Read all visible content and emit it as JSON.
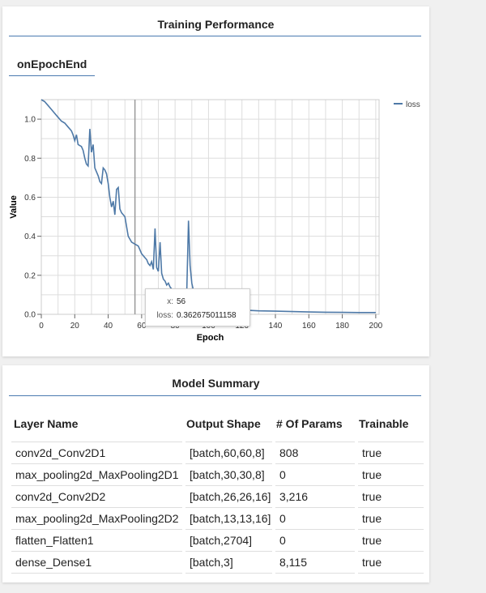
{
  "training": {
    "title": "Training Performance",
    "tab": "onEpochEnd",
    "tooltip": {
      "x_key": "x:",
      "x_val": "56",
      "loss_key": "loss:",
      "loss_val": "0.362675011158"
    }
  },
  "colors": {
    "series": "#4e79a7",
    "accent_rule": "#4a7ab0",
    "grid": "#dddddd"
  },
  "chart_data": {
    "type": "line",
    "xlabel": "Epoch",
    "ylabel": "Value",
    "xlim": [
      0,
      202
    ],
    "ylim": [
      0,
      1.1
    ],
    "xticks": [
      0,
      20,
      40,
      60,
      80,
      100,
      120,
      140,
      160,
      180,
      200
    ],
    "yticks": [
      0.0,
      0.2,
      0.4,
      0.6,
      0.8,
      1.0
    ],
    "ytick_labels": [
      "0.0",
      "0.2",
      "0.4",
      "0.6",
      "0.8",
      "1.0"
    ],
    "grid": true,
    "legend": "top-right",
    "hover_x": 56,
    "series": [
      {
        "name": "loss",
        "x": [
          0,
          2,
          4,
          6,
          8,
          10,
          12,
          14,
          16,
          18,
          19,
          20,
          21,
          22,
          24,
          25,
          26,
          27,
          28,
          29,
          30,
          31,
          32,
          33,
          34,
          35,
          36,
          37,
          38,
          39,
          40,
          41,
          42,
          43,
          44,
          45,
          46,
          47,
          48,
          49,
          50,
          52,
          54,
          56,
          58,
          60,
          62,
          63,
          64,
          65,
          66,
          67,
          68,
          69,
          70,
          71,
          72,
          73,
          74,
          75,
          76,
          77,
          78,
          80,
          82,
          85,
          87,
          88,
          89,
          90,
          91,
          92,
          93,
          94,
          95,
          96,
          98,
          100,
          105,
          110,
          115,
          120,
          125,
          130,
          140,
          150,
          160,
          170,
          180,
          190,
          200
        ],
        "values": [
          1.1,
          1.09,
          1.07,
          1.05,
          1.03,
          1.01,
          0.99,
          0.98,
          0.96,
          0.94,
          0.92,
          0.89,
          0.92,
          0.87,
          0.86,
          0.84,
          0.8,
          0.77,
          0.76,
          0.95,
          0.83,
          0.87,
          0.75,
          0.73,
          0.71,
          0.68,
          0.67,
          0.75,
          0.74,
          0.72,
          0.67,
          0.6,
          0.55,
          0.58,
          0.51,
          0.64,
          0.65,
          0.54,
          0.52,
          0.51,
          0.5,
          0.4,
          0.37,
          0.36,
          0.35,
          0.31,
          0.29,
          0.28,
          0.26,
          0.25,
          0.27,
          0.23,
          0.44,
          0.24,
          0.22,
          0.37,
          0.21,
          0.18,
          0.17,
          0.15,
          0.16,
          0.14,
          0.13,
          0.12,
          0.11,
          0.1,
          0.12,
          0.48,
          0.25,
          0.16,
          0.12,
          0.09,
          0.08,
          0.1,
          0.09,
          0.08,
          0.06,
          0.05,
          0.035,
          0.03,
          0.025,
          0.022,
          0.02,
          0.018,
          0.016,
          0.014,
          0.012,
          0.011,
          0.01,
          0.009,
          0.009
        ]
      }
    ]
  },
  "summary": {
    "title": "Model Summary",
    "columns": [
      "Layer Name",
      "Output Shape",
      "# Of Params",
      "Trainable"
    ],
    "rows": [
      [
        "conv2d_Conv2D1",
        "[batch,60,60,8]",
        "808",
        "true"
      ],
      [
        "max_pooling2d_MaxPooling2D1",
        "[batch,30,30,8]",
        "0",
        "true"
      ],
      [
        "conv2d_Conv2D2",
        "[batch,26,26,16]",
        "3,216",
        "true"
      ],
      [
        "max_pooling2d_MaxPooling2D2",
        "[batch,13,13,16]",
        "0",
        "true"
      ],
      [
        "flatten_Flatten1",
        "[batch,2704]",
        "0",
        "true"
      ],
      [
        "dense_Dense1",
        "[batch,3]",
        "8,115",
        "true"
      ]
    ]
  }
}
